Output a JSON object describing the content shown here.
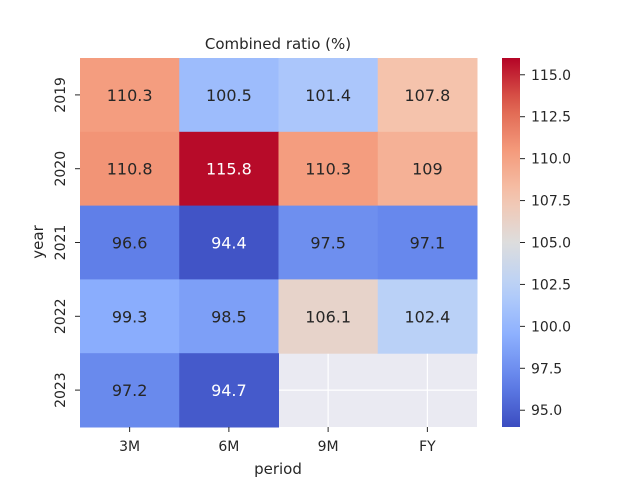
{
  "chart_data": {
    "type": "heatmap",
    "title": "Combined ratio (%)",
    "xlabel": "period",
    "ylabel": "year",
    "columns": [
      "3M",
      "6M",
      "9M",
      "FY"
    ],
    "rows": [
      "2019",
      "2020",
      "2021",
      "2022",
      "2023"
    ],
    "values": [
      [
        110.3,
        100.5,
        101.4,
        107.8
      ],
      [
        110.8,
        115.8,
        110.3,
        109
      ],
      [
        96.6,
        94.4,
        97.5,
        97.1
      ],
      [
        99.3,
        98.5,
        106.1,
        102.4
      ],
      [
        97.2,
        94.7,
        null,
        null
      ]
    ],
    "cell_labels": [
      [
        "110.3",
        "100.5",
        "101.4",
        "107.8"
      ],
      [
        "110.8",
        "115.8",
        "110.3",
        "109"
      ],
      [
        "96.6",
        "94.4",
        "97.5",
        "97.1"
      ],
      [
        "99.3",
        "98.5",
        "106.1",
        "102.4"
      ],
      [
        "97.2",
        "94.7",
        "",
        ""
      ]
    ],
    "colormap": "coolwarm",
    "vmin": 94.0,
    "vmax": 116.0,
    "colorbar_ticks": [
      95.0,
      97.5,
      100.0,
      102.5,
      105.0,
      107.5,
      110.0,
      112.5,
      115.0
    ],
    "colorbar_tick_labels": [
      "95.0",
      "97.5",
      "100.0",
      "102.5",
      "105.0",
      "107.5",
      "110.0",
      "112.5",
      "115.0"
    ],
    "missing_color": "#eaeaf2"
  }
}
